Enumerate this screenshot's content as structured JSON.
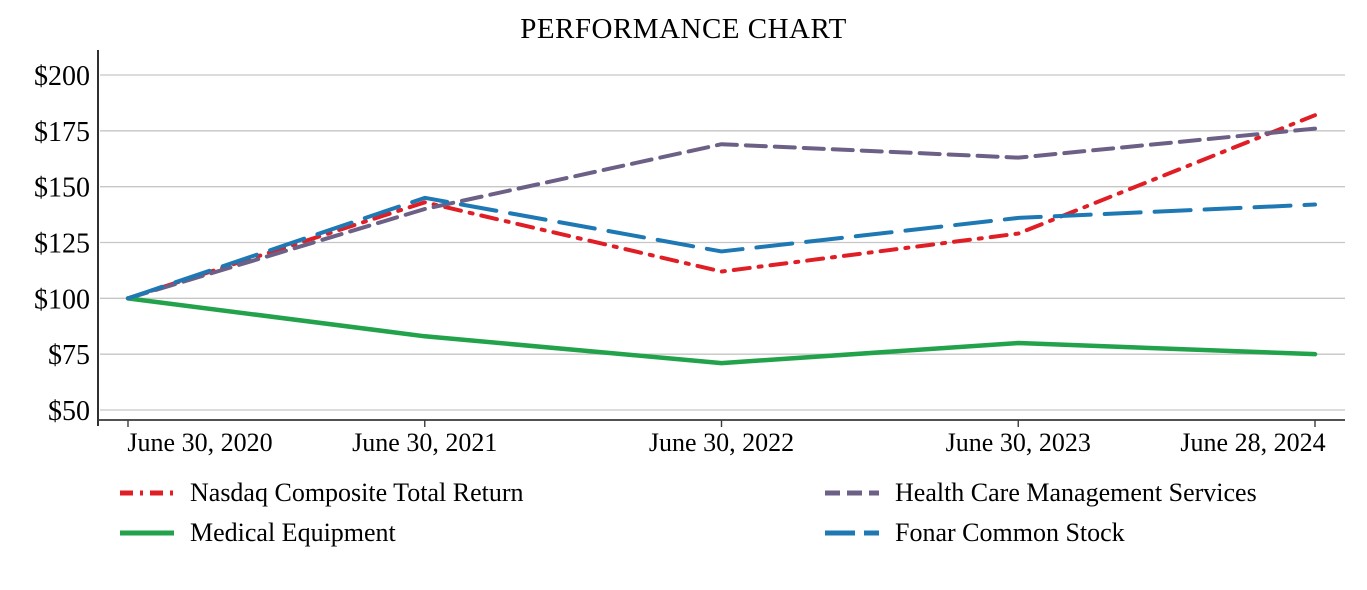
{
  "chart_data": {
    "type": "line",
    "title": "PERFORMANCE CHART",
    "categories": [
      "June 30, 2020",
      "June 30, 2021",
      "June 30, 2022",
      "June 30, 2023",
      "June 28, 2024"
    ],
    "ylim": [
      50,
      200
    ],
    "y_ticks": [
      {
        "label": "$200",
        "value": 200
      },
      {
        "label": "$175",
        "value": 175
      },
      {
        "label": "$150",
        "value": 150
      },
      {
        "label": "$125",
        "value": 125
      },
      {
        "label": "$100",
        "value": 100
      },
      {
        "label": "$75",
        "value": 75
      },
      {
        "label": "$50",
        "value": 50
      }
    ],
    "grid": "horizontal",
    "legend_position": "bottom",
    "axis_color": "#3a3a3a",
    "gridline_color": "#c6c6c6",
    "series": [
      {
        "name": "Nasdaq Composite Total Return",
        "color": "#e01e25",
        "dash": "16 9 3 9",
        "legend_dash": "13 7 3 7",
        "width": 4,
        "values": [
          100,
          143,
          112,
          129,
          182
        ]
      },
      {
        "name": "Health Care Management Services",
        "color": "#6c6086",
        "dash": "20 9",
        "legend_dash": "15 7",
        "width": 4,
        "values": [
          100,
          140,
          169,
          163,
          176
        ]
      },
      {
        "name": "Medical Equipment",
        "color": "#22a24b",
        "dash": "",
        "legend_dash": "",
        "width": 4.5,
        "values": [
          100,
          83,
          71,
          80,
          75
        ]
      },
      {
        "name": "Fonar Common Stock",
        "color": "#1e78b4",
        "dash": "36 14",
        "legend_dash": "30 9",
        "width": 4,
        "values": [
          100,
          145,
          121,
          136,
          142
        ]
      }
    ]
  }
}
